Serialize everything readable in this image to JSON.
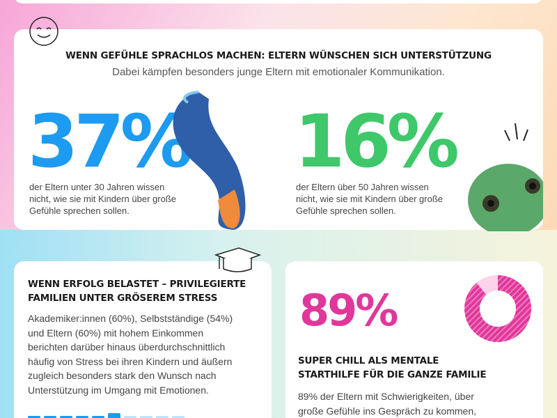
{
  "section1": {
    "title": "WENN GEFÜHLE SPRACHLOS MACHEN: ELTERN WÜNSCHEN SICH UNTERSTÜTZUNG",
    "subtitle": "Dabei kämpfen besonders junge Eltern mit emotionaler Kommunikation.",
    "stats": [
      {
        "value": "37%",
        "text": [
          "der Eltern unter 30 Jahren wissen",
          "nicht, wie sie mit Kindern über große",
          "Gefühle sprechen sollen."
        ]
      },
      {
        "value": "16%",
        "text": [
          "der Eltern über 50 Jahren wissen",
          "nicht, wie sie mit Kindern über große",
          "Gefühle sprechen sollen."
        ]
      }
    ]
  },
  "section2": {
    "title": [
      "WENN ERFOLG BELASTET – PRIVILEGIERTE",
      "FAMILIEN UNTER GRÖSEREM STRESS"
    ],
    "text": [
      "Akademiker:innen (60%), Selbstständige (54%)",
      "und Eltern (60%) mit hohem Einkommen",
      "berichten darüber hinaus überdurchschnittlich",
      "häufig von Stress bei ihren Kindern und äußern",
      "zugleich besonders stark den Wunsch nach",
      "Unterstützung im Umgang mit Emotionen."
    ]
  },
  "section3": {
    "donut": {
      "value": 89,
      "label": "89%"
    },
    "title": [
      "SUPER CHILL ALS MENTALE",
      "STARTHILFE FÜR DIE GANZE FAMILIE"
    ],
    "text": [
      "89% der Eltern mit Schwierigkeiten, über",
      "große Gefühle ins Gespräch zu kommen,"
    ]
  }
}
